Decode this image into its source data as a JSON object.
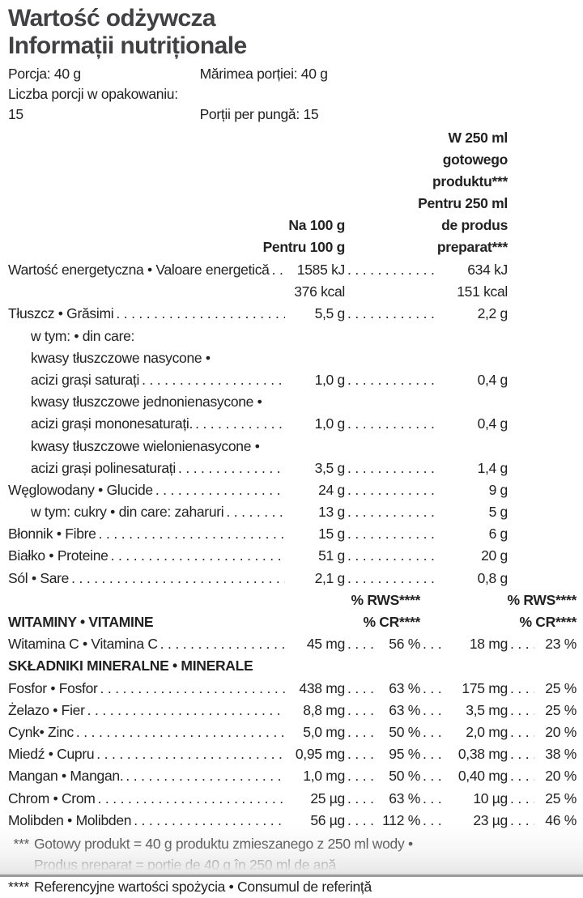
{
  "title": {
    "line1": "Wartość odżywcza",
    "line2": "Informații nutriționale"
  },
  "serving": {
    "col1": [
      "Porcja: 40 g",
      "Liczba porcji w opakowaniu: 15"
    ],
    "col2": [
      "Mărimea porției: 40 g",
      "Porții per pungă: 15"
    ]
  },
  "columns": {
    "per250_header": [
      "W 250 ml",
      "gotowego",
      "produktu***",
      "Pentru 250 ml",
      "de produs",
      "preparat***"
    ],
    "per100_header": [
      "Na 100 g",
      "Pentru 100 g"
    ],
    "rws_label": "% RWS****",
    "cr_label": "% CR****"
  },
  "nutrient_rows": [
    {
      "label": "Wartość energetyczna • Valoare energetică",
      "v1": "1585 kJ",
      "v2": "634 kJ"
    },
    {
      "label": "",
      "v1": "376 kcal",
      "v2": "151 kcal"
    },
    {
      "label": "Tłuszcz • Grăsimi",
      "v1": "5,5 g",
      "v2": "2,2 g"
    },
    {
      "label": "w tym: • din care:",
      "v1": "",
      "v2": ""
    },
    {
      "label": "kwasy tłuszczowe nasycone •",
      "v1": "",
      "v2": ""
    },
    {
      "label": "acizi grași saturați",
      "v1": "1,0 g",
      "v2": "0,4 g"
    },
    {
      "label": "kwasy tłuszczowe jednonienasycone •",
      "v1": "",
      "v2": ""
    },
    {
      "label": "acizi grași mononesaturați.",
      "v1": "1,0 g",
      "v2": "0,4 g"
    },
    {
      "label": "kwasy tłuszczowe wielonienasycone •",
      "v1": "",
      "v2": ""
    },
    {
      "label": "acizi grași polinesaturați",
      "v1": "3,5 g",
      "v2": "1,4 g"
    },
    {
      "label": "Węglowodany • Glucide",
      "v1": "24 g",
      "v2": "9 g"
    },
    {
      "label": "w tym: cukry • din care: zaharuri",
      "v1": "13 g",
      "v2": "5 g"
    },
    {
      "label": "Błonnik • Fibre",
      "v1": "15 g",
      "v2": "6 g"
    },
    {
      "label": "Białko • Proteine",
      "v1": "51 g",
      "v2": "20 g"
    },
    {
      "label": "Sól • Sare",
      "v1": "2,1 g",
      "v2": "0,8 g"
    }
  ],
  "sections": {
    "vitamins": "WITAMINY • VITAMINE",
    "minerals": "SKŁADNIKI MINERALNE • MINERALE"
  },
  "vitamin_rows": [
    {
      "label": "Witamina C • Vitamina C",
      "v1": "45 mg",
      "p1": "56 %",
      "v2": "18 mg",
      "p2": "23 %"
    }
  ],
  "mineral_rows": [
    {
      "label": "Fosfor • Fosfor",
      "v1": "438 mg",
      "p1": "63 %",
      "v2": "175 mg",
      "p2": "25 %"
    },
    {
      "label": "Żelazo • Fier",
      "v1": "8,8 mg",
      "p1": "63 %",
      "v2": "3,5 mg",
      "p2": "25 %"
    },
    {
      "label": "Cynk• Zinc",
      "v1": "5,0 mg",
      "p1": "50 %",
      "v2": "2,0 mg",
      "p2": "20 %"
    },
    {
      "label": "Miedź • Cupru",
      "v1": "0,95 mg",
      "p1": "95 %",
      "v2": "0,38 mg",
      "p2": "38 %"
    },
    {
      "label": "Mangan • Mangan.",
      "v1": "1,0 mg",
      "p1": "50 %",
      "v2": "0,40 mg",
      "p2": "20 %"
    },
    {
      "label": "Chrom • Crom",
      "v1": "25 µg",
      "p1": "63 %",
      "v2": "10 µg",
      "p2": "25 %"
    },
    {
      "label": "Molibden • Molibden",
      "v1": "56 µg",
      "p1": "112 %",
      "v2": "23 µg",
      "p2": "46 %"
    }
  ],
  "footnotes": [
    {
      "marker": "***",
      "text": "Gotowy produkt = 40 g produktu zmieszanego z 250 ml wody •"
    },
    {
      "marker": "",
      "text": "Produs preparat = porție de 40 g în 250 ml de apă"
    },
    {
      "marker": "****",
      "text": "Referencyjne wartości spożycia • Consumul de referință"
    }
  ],
  "colors": {
    "title": "#414042",
    "text": "#222222",
    "bottom_bar": "#9b9b9b"
  }
}
